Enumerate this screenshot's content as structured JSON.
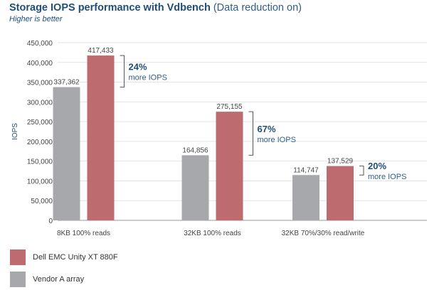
{
  "chart_data": {
    "type": "bar",
    "title": "Storage IOPS performance with Vdbench",
    "title_suffix": "(Data reduction on)",
    "subtitle": "Higher is better",
    "ylabel": "IOPS",
    "xlabel": "",
    "ylim": [
      0,
      450000
    ],
    "yticks": [
      "0",
      "50,000",
      "100,000",
      "150,000",
      "200,000",
      "250,000",
      "300,000",
      "350,000",
      "400,000",
      "450,000"
    ],
    "grid": true,
    "legend_position": "bottom-left",
    "categories": [
      "8KB 100% reads",
      "32KB 100% reads",
      "32KB 70%/30% read/write"
    ],
    "series": [
      {
        "name": "Vendor A array",
        "color": "#a7a8ac",
        "values": [
          337362,
          164856,
          114747
        ],
        "labels": [
          "337,362",
          "164,856",
          "114,747"
        ]
      },
      {
        "name": "Dell EMC Unity XT 880F",
        "color": "#be6b70",
        "values": [
          417433,
          275155,
          137529
        ],
        "labels": [
          "417,433",
          "275,155",
          "137,529"
        ]
      }
    ],
    "annotations": [
      {
        "percent": "24%",
        "text": "more IOPS"
      },
      {
        "percent": "67%",
        "text": "more IOPS"
      },
      {
        "percent": "20%",
        "text": "more IOPS"
      }
    ],
    "legend": [
      {
        "name": "Dell EMC Unity XT 880F",
        "color": "#be6b70"
      },
      {
        "name": "Vendor A array",
        "color": "#a7a8ac"
      }
    ],
    "colors": {
      "title": "#1f4e79",
      "annotation": "#1f4e79",
      "grid": "#e3e3e3",
      "axis": "#999999"
    }
  }
}
